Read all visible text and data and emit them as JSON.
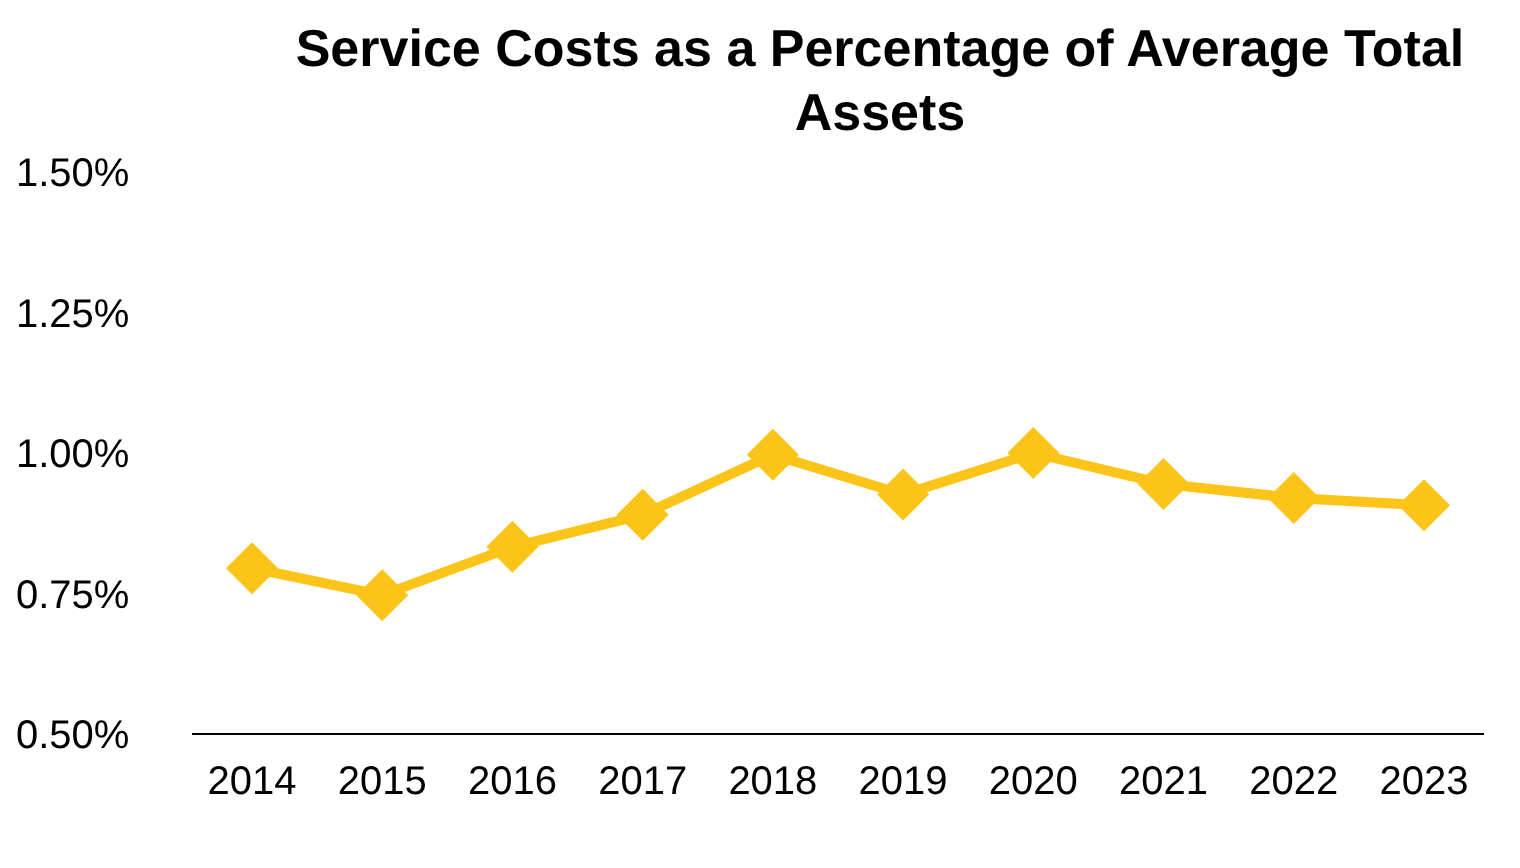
{
  "chart_data": {
    "type": "line",
    "title": "Service Costs as a Percentage of Average Total Assets",
    "categories": [
      "2014",
      "2015",
      "2016",
      "2017",
      "2018",
      "2019",
      "2020",
      "2021",
      "2022",
      "2023"
    ],
    "series": [
      {
        "color": "#fcc419",
        "values": [
          0.795,
          0.747,
          0.833,
          0.89,
          0.997,
          0.926,
          1.0,
          0.945,
          0.92,
          0.907
        ]
      }
    ],
    "ylim": [
      0.5,
      1.5
    ],
    "yticks": [
      {
        "value": 0.5,
        "label": "0.50%"
      },
      {
        "value": 0.75,
        "label": "0.75%"
      },
      {
        "value": 1.0,
        "label": "1.00%"
      },
      {
        "value": 1.25,
        "label": "1.25%"
      },
      {
        "value": 1.5,
        "label": "1.50%"
      }
    ],
    "grid": false,
    "legend": false,
    "marker": "diamond",
    "line_style": "solid"
  }
}
